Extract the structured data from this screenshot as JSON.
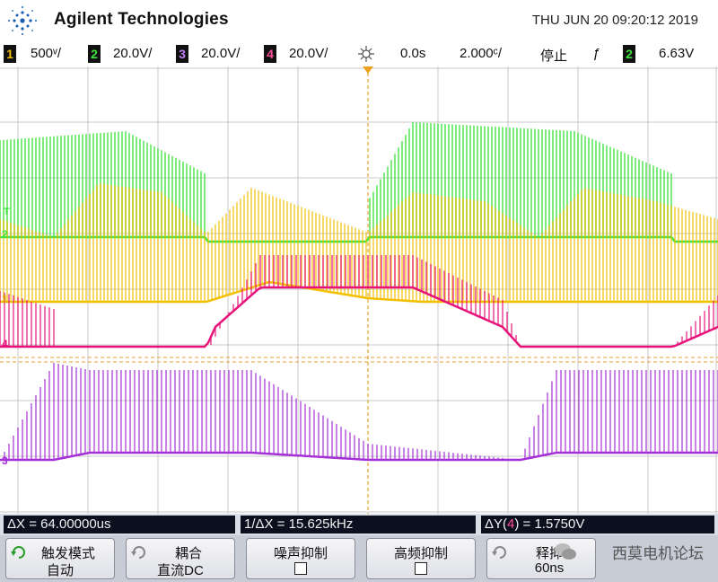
{
  "header": {
    "brand": "Agilent Technologies",
    "datetime": "THU JUN 20 09:20:12 2019"
  },
  "channels": [
    {
      "num": "1",
      "scale": "500ᵛ/",
      "color": "#f2c000"
    },
    {
      "num": "2",
      "scale": "20.0V/",
      "color": "#3ee43e"
    },
    {
      "num": "3",
      "scale": "20.0V/",
      "color": "#a530d8"
    },
    {
      "num": "4",
      "scale": "20.0V/",
      "color": "#e8137a"
    }
  ],
  "timebase": {
    "delay": "0.0s",
    "scale": "2.000ᶜ/",
    "run_state": "停止",
    "trigger_slope": "ƒ",
    "trigger_channel": "2",
    "trigger_level": "6.63V"
  },
  "markers": {
    "t": "T",
    "ch2": "2",
    "ch1": "1",
    "ch4": "4",
    "ch3": "3"
  },
  "measurements": {
    "dx": "ΔX = 64.00000us",
    "inv_dx": "1/ΔX = 15.625kHz",
    "dy_prefix": "ΔY(",
    "dy_channel": "4",
    "dy_suffix": ") = 1.5750V"
  },
  "softkeys": [
    {
      "line1": "触发模式",
      "line2": "自动"
    },
    {
      "line1": "耦合",
      "line2": "直流DC"
    },
    {
      "line1": "噪声抑制",
      "line2": ""
    },
    {
      "line1": "高频抑制",
      "line2": ""
    },
    {
      "line1": "释抑",
      "line2": "60ns"
    }
  ],
  "watermark": "西莫电机论坛",
  "colors": {
    "ch1": "#f2c000",
    "ch2": "#3ee43e",
    "ch3": "#a530d8",
    "ch4": "#e8137a",
    "trigger": "#f0a020"
  }
}
